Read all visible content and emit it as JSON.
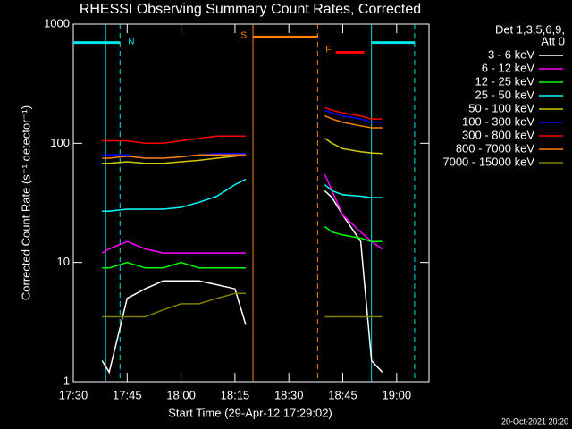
{
  "chart_data": {
    "type": "line",
    "title": "RHESSI Observing Summary Count Rates, Corrected",
    "x_label": "Start Time (29-Apr-12 17:29:02)",
    "y_label": "Corrected Count Rate (s⁻¹ detector⁻¹)",
    "legend_title": [
      "Det 1,3,5,6,9,",
      "Att 0"
    ],
    "footer": "20-Oct-2021 20:20",
    "log_y": true,
    "legend": "outside-right",
    "xlim": [
      "17:30",
      "19:09"
    ],
    "xticks": [
      "17:30",
      "17:45",
      "18:00",
      "18:15",
      "18:30",
      "18:45",
      "19:00"
    ],
    "ylim": [
      1,
      1000
    ],
    "yticks": [
      1,
      10,
      100,
      1000
    ],
    "x": [
      "17:38",
      "17:40",
      "17:45",
      "17:50",
      "17:55",
      "18:00",
      "18:05",
      "18:10",
      "18:15",
      "18:18",
      "18:29",
      "18:40",
      "18:42",
      "18:45",
      "18:50",
      "18:53",
      "18:56"
    ],
    "series": [
      {
        "name": "3 - 6 keV",
        "color": "#ffffff",
        "values": [
          1.5,
          1.2,
          5,
          6,
          7,
          7,
          7,
          6.5,
          6,
          3,
          null,
          40,
          35,
          25,
          15,
          1.5,
          1.2
        ]
      },
      {
        "name": "6 - 12 keV",
        "color": "#ff00ff",
        "values": [
          12,
          13,
          15,
          13,
          12,
          12,
          12,
          12,
          12,
          12,
          null,
          55,
          40,
          25,
          18,
          15,
          13
        ]
      },
      {
        "name": "12 - 25 keV",
        "color": "#00ff00",
        "values": [
          9,
          9,
          10,
          9,
          9,
          10,
          9,
          9,
          9,
          9,
          null,
          20,
          18,
          17,
          16,
          15,
          15
        ]
      },
      {
        "name": "25 - 50 keV",
        "color": "#00ffff",
        "values": [
          27,
          27,
          28,
          28,
          28,
          29,
          32,
          36,
          45,
          50,
          null,
          45,
          40,
          37,
          36,
          35,
          35
        ]
      },
      {
        "name": "50 - 100 keV",
        "color": "#d2c800",
        "values": [
          68,
          68,
          70,
          68,
          68,
          70,
          72,
          75,
          78,
          80,
          null,
          110,
          100,
          90,
          85,
          83,
          82
        ]
      },
      {
        "name": "100 - 300 keV",
        "color": "#0000ff",
        "values": [
          80,
          80,
          80,
          75,
          75,
          77,
          80,
          82,
          82,
          82,
          null,
          190,
          180,
          170,
          160,
          150,
          150
        ]
      },
      {
        "name": "300 - 800 keV",
        "color": "#ff0000",
        "values": [
          105,
          105,
          105,
          100,
          100,
          105,
          110,
          115,
          115,
          115,
          null,
          200,
          190,
          180,
          170,
          160,
          160
        ]
      },
      {
        "name": "800 - 7000 keV",
        "color": "#ff8000",
        "values": [
          75,
          75,
          78,
          75,
          75,
          77,
          80,
          80,
          80,
          80,
          null,
          170,
          160,
          150,
          140,
          135,
          135
        ]
      },
      {
        "name": "7000 - 15000 keV",
        "color": "#808000",
        "values": [
          3.5,
          3.5,
          3.5,
          3.5,
          4,
          4.5,
          4.5,
          5,
          5.5,
          5.5,
          null,
          3.5,
          3.5,
          3.5,
          3.5,
          3.5,
          3.5
        ]
      }
    ],
    "events": [
      {
        "time": "17:39",
        "color": "#00e5e5",
        "dashed": false
      },
      {
        "time": "17:43",
        "color": "#00e5e5",
        "dashed": true,
        "label": "N"
      },
      {
        "time": "18:20",
        "color": "#ff8000",
        "dashed": false,
        "label": "S"
      },
      {
        "time": "18:38",
        "color": "#ff8000",
        "dashed": true,
        "label": "F"
      },
      {
        "time": "18:53",
        "color": "#00e5e5",
        "dashed": false
      },
      {
        "time": "19:05",
        "color": "#00e5e5",
        "dashed": true
      }
    ],
    "bars": [
      {
        "start": "17:30",
        "end": "17:43",
        "level": 700,
        "color": "#00e5e5"
      },
      {
        "start": "18:20",
        "end": "18:38",
        "level": 780,
        "color": "#ff8000"
      },
      {
        "start": "18:43",
        "end": "18:51",
        "level": 580,
        "color": "#ff0000"
      },
      {
        "start": "18:53",
        "end": "19:05",
        "level": 700,
        "color": "#00e5e5"
      }
    ]
  }
}
